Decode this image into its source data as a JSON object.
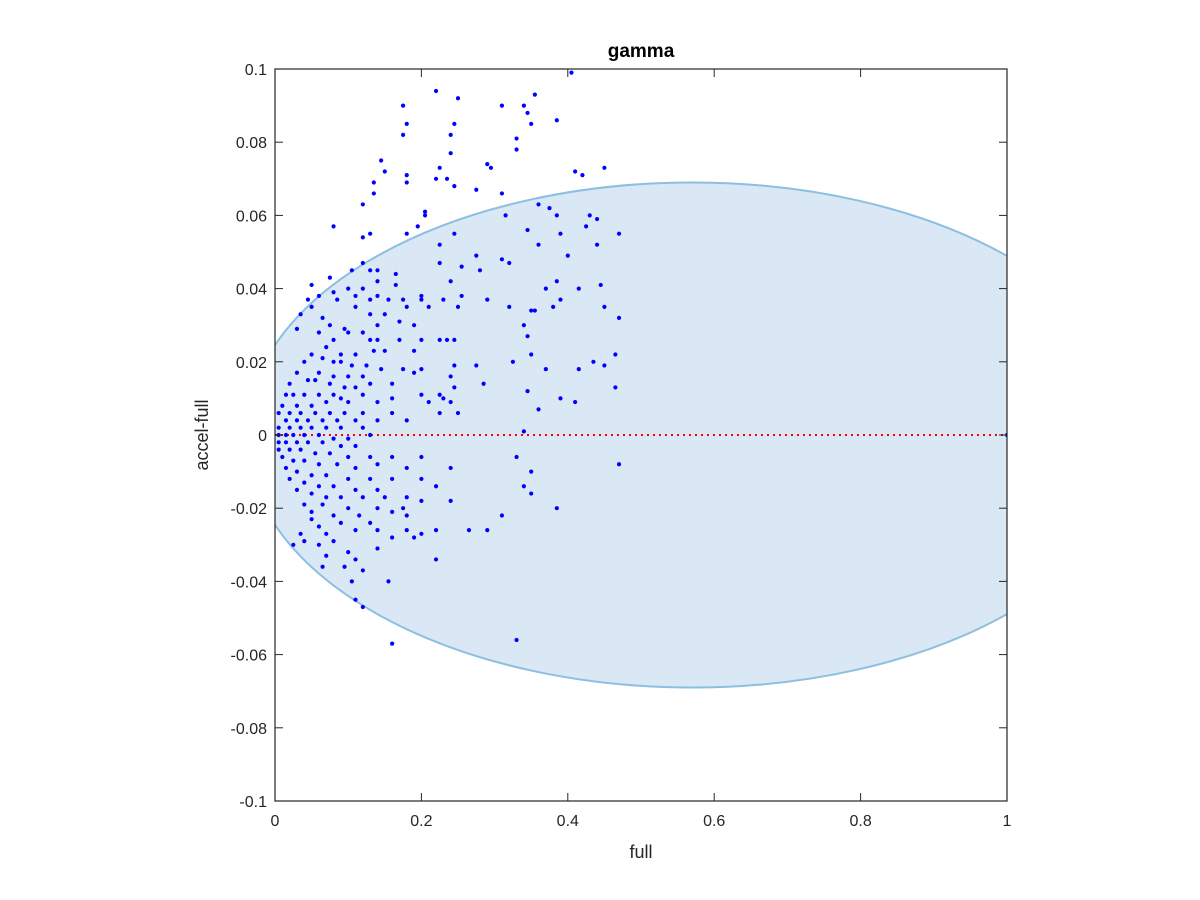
{
  "chart_data": {
    "type": "scatter",
    "title": "gamma",
    "xlabel": "full",
    "ylabel": "accel-full",
    "xlim": [
      0,
      1
    ],
    "ylim": [
      -0.1,
      0.1
    ],
    "xticks": [
      0,
      0.2,
      0.4,
      0.6,
      0.8,
      1
    ],
    "xtick_labels": [
      "0",
      "0.2",
      "0.4",
      "0.6",
      "0.8",
      "1"
    ],
    "yticks": [
      -0.1,
      -0.08,
      -0.06,
      -0.04,
      -0.02,
      0,
      0.02,
      0.04,
      0.06,
      0.08,
      0.1
    ],
    "ytick_labels": [
      "-0.1",
      "-0.08",
      "-0.06",
      "-0.04",
      "-0.02",
      "0",
      "0.02",
      "0.04",
      "0.06",
      "0.08",
      "0.1"
    ],
    "grid": false,
    "colors": {
      "points": "#0000ff",
      "ellipse_fill": "#d9e8f4",
      "ellipse_edge": "#8dbfe0",
      "zero_line": "#ff0000",
      "axes": "#262626"
    },
    "ellipse": {
      "center": [
        0.57,
        0
      ],
      "semi_axis_x": 0.61,
      "semi_axis_y": 0.069
    },
    "reference_line": {
      "y": 0,
      "x_range": [
        0,
        1
      ],
      "style": "dotted"
    },
    "points": [
      [
        0.405,
        0.099
      ],
      [
        0.22,
        0.094
      ],
      [
        0.175,
        0.09
      ],
      [
        0.25,
        0.092
      ],
      [
        0.31,
        0.09
      ],
      [
        0.34,
        0.09
      ],
      [
        0.355,
        0.093
      ],
      [
        0.345,
        0.088
      ],
      [
        0.35,
        0.085
      ],
      [
        0.18,
        0.085
      ],
      [
        0.245,
        0.085
      ],
      [
        0.385,
        0.086
      ],
      [
        0.24,
        0.082
      ],
      [
        0.33,
        0.081
      ],
      [
        0.175,
        0.082
      ],
      [
        0.24,
        0.077
      ],
      [
        0.33,
        0.078
      ],
      [
        0.145,
        0.075
      ],
      [
        0.18,
        0.071
      ],
      [
        0.225,
        0.073
      ],
      [
        0.29,
        0.074
      ],
      [
        0.15,
        0.072
      ],
      [
        0.18,
        0.069
      ],
      [
        0.22,
        0.07
      ],
      [
        0.235,
        0.07
      ],
      [
        0.295,
        0.073
      ],
      [
        0.41,
        0.072
      ],
      [
        0.45,
        0.073
      ],
      [
        0.42,
        0.071
      ],
      [
        0.135,
        0.069
      ],
      [
        0.245,
        0.068
      ],
      [
        0.275,
        0.067
      ],
      [
        0.31,
        0.066
      ],
      [
        0.135,
        0.066
      ],
      [
        0.36,
        0.063
      ],
      [
        0.12,
        0.063
      ],
      [
        0.205,
        0.061
      ],
      [
        0.375,
        0.062
      ],
      [
        0.315,
        0.06
      ],
      [
        0.385,
        0.06
      ],
      [
        0.43,
        0.06
      ],
      [
        0.44,
        0.059
      ],
      [
        0.08,
        0.057
      ],
      [
        0.13,
        0.055
      ],
      [
        0.12,
        0.054
      ],
      [
        0.195,
        0.057
      ],
      [
        0.18,
        0.055
      ],
      [
        0.205,
        0.06
      ],
      [
        0.245,
        0.055
      ],
      [
        0.345,
        0.056
      ],
      [
        0.36,
        0.052
      ],
      [
        0.39,
        0.055
      ],
      [
        0.425,
        0.057
      ],
      [
        0.47,
        0.055
      ],
      [
        0.44,
        0.052
      ],
      [
        0.225,
        0.052
      ],
      [
        0.275,
        0.049
      ],
      [
        0.31,
        0.048
      ],
      [
        0.4,
        0.049
      ],
      [
        0.225,
        0.047
      ],
      [
        0.12,
        0.047
      ],
      [
        0.14,
        0.045
      ],
      [
        0.165,
        0.044
      ],
      [
        0.13,
        0.045
      ],
      [
        0.105,
        0.045
      ],
      [
        0.255,
        0.046
      ],
      [
        0.28,
        0.045
      ],
      [
        0.32,
        0.047
      ],
      [
        0.37,
        0.04
      ],
      [
        0.385,
        0.042
      ],
      [
        0.415,
        0.04
      ],
      [
        0.445,
        0.041
      ],
      [
        0.075,
        0.043
      ],
      [
        0.1,
        0.04
      ],
      [
        0.12,
        0.04
      ],
      [
        0.14,
        0.042
      ],
      [
        0.165,
        0.041
      ],
      [
        0.24,
        0.042
      ],
      [
        0.255,
        0.038
      ],
      [
        0.2,
        0.038
      ],
      [
        0.14,
        0.038
      ],
      [
        0.05,
        0.041
      ],
      [
        0.045,
        0.037
      ],
      [
        0.06,
        0.038
      ],
      [
        0.08,
        0.039
      ],
      [
        0.085,
        0.037
      ],
      [
        0.11,
        0.038
      ],
      [
        0.13,
        0.037
      ],
      [
        0.155,
        0.037
      ],
      [
        0.175,
        0.037
      ],
      [
        0.23,
        0.037
      ],
      [
        0.25,
        0.035
      ],
      [
        0.29,
        0.037
      ],
      [
        0.32,
        0.035
      ],
      [
        0.35,
        0.034
      ],
      [
        0.355,
        0.034
      ],
      [
        0.38,
        0.035
      ],
      [
        0.39,
        0.037
      ],
      [
        0.45,
        0.035
      ],
      [
        0.47,
        0.032
      ],
      [
        0.11,
        0.035
      ],
      [
        0.13,
        0.033
      ],
      [
        0.15,
        0.033
      ],
      [
        0.18,
        0.035
      ],
      [
        0.2,
        0.037
      ],
      [
        0.21,
        0.035
      ],
      [
        0.17,
        0.031
      ],
      [
        0.19,
        0.03
      ],
      [
        0.14,
        0.03
      ],
      [
        0.095,
        0.029
      ],
      [
        0.075,
        0.03
      ],
      [
        0.065,
        0.032
      ],
      [
        0.05,
        0.035
      ],
      [
        0.035,
        0.033
      ],
      [
        0.03,
        0.029
      ],
      [
        0.06,
        0.028
      ],
      [
        0.08,
        0.026
      ],
      [
        0.1,
        0.028
      ],
      [
        0.12,
        0.028
      ],
      [
        0.13,
        0.026
      ],
      [
        0.14,
        0.026
      ],
      [
        0.2,
        0.026
      ],
      [
        0.225,
        0.026
      ],
      [
        0.235,
        0.026
      ],
      [
        0.245,
        0.026
      ],
      [
        0.34,
        0.03
      ],
      [
        0.345,
        0.027
      ],
      [
        0.17,
        0.026
      ],
      [
        0.07,
        0.024
      ],
      [
        0.05,
        0.022
      ],
      [
        0.09,
        0.022
      ],
      [
        0.11,
        0.022
      ],
      [
        0.135,
        0.023
      ],
      [
        0.15,
        0.023
      ],
      [
        0.19,
        0.023
      ],
      [
        0.35,
        0.022
      ],
      [
        0.04,
        0.02
      ],
      [
        0.065,
        0.021
      ],
      [
        0.08,
        0.02
      ],
      [
        0.09,
        0.02
      ],
      [
        0.105,
        0.019
      ],
      [
        0.125,
        0.019
      ],
      [
        0.145,
        0.018
      ],
      [
        0.175,
        0.018
      ],
      [
        0.2,
        0.018
      ],
      [
        0.245,
        0.019
      ],
      [
        0.275,
        0.019
      ],
      [
        0.325,
        0.02
      ],
      [
        0.37,
        0.018
      ],
      [
        0.415,
        0.018
      ],
      [
        0.45,
        0.019
      ],
      [
        0.465,
        0.022
      ],
      [
        0.435,
        0.02
      ],
      [
        0.06,
        0.017
      ],
      [
        0.08,
        0.016
      ],
      [
        0.1,
        0.016
      ],
      [
        0.12,
        0.016
      ],
      [
        0.03,
        0.017
      ],
      [
        0.02,
        0.014
      ],
      [
        0.045,
        0.015
      ],
      [
        0.055,
        0.015
      ],
      [
        0.075,
        0.014
      ],
      [
        0.095,
        0.013
      ],
      [
        0.11,
        0.013
      ],
      [
        0.13,
        0.014
      ],
      [
        0.16,
        0.014
      ],
      [
        0.19,
        0.017
      ],
      [
        0.24,
        0.016
      ],
      [
        0.245,
        0.013
      ],
      [
        0.285,
        0.014
      ],
      [
        0.465,
        0.013
      ],
      [
        0.015,
        0.011
      ],
      [
        0.025,
        0.011
      ],
      [
        0.04,
        0.011
      ],
      [
        0.06,
        0.011
      ],
      [
        0.08,
        0.011
      ],
      [
        0.09,
        0.01
      ],
      [
        0.12,
        0.011
      ],
      [
        0.2,
        0.011
      ],
      [
        0.225,
        0.011
      ],
      [
        0.23,
        0.01
      ],
      [
        0.345,
        0.012
      ],
      [
        0.39,
        0.01
      ],
      [
        0.41,
        0.009
      ],
      [
        0.21,
        0.009
      ],
      [
        0.24,
        0.009
      ],
      [
        0.16,
        0.01
      ],
      [
        0.14,
        0.009
      ],
      [
        0.1,
        0.009
      ],
      [
        0.07,
        0.009
      ],
      [
        0.05,
        0.008
      ],
      [
        0.03,
        0.008
      ],
      [
        0.01,
        0.008
      ],
      [
        0.005,
        0.006
      ],
      [
        0.02,
        0.006
      ],
      [
        0.035,
        0.006
      ],
      [
        0.055,
        0.006
      ],
      [
        0.075,
        0.006
      ],
      [
        0.095,
        0.006
      ],
      [
        0.12,
        0.006
      ],
      [
        0.015,
        0.004
      ],
      [
        0.03,
        0.004
      ],
      [
        0.045,
        0.004
      ],
      [
        0.065,
        0.004
      ],
      [
        0.085,
        0.004
      ],
      [
        0.11,
        0.004
      ],
      [
        0.14,
        0.004
      ],
      [
        0.16,
        0.006
      ],
      [
        0.18,
        0.004
      ],
      [
        0.225,
        0.006
      ],
      [
        0.25,
        0.006
      ],
      [
        0.36,
        0.007
      ],
      [
        0.005,
        0.002
      ],
      [
        0.02,
        0.002
      ],
      [
        0.035,
        0.002
      ],
      [
        0.05,
        0.002
      ],
      [
        0.07,
        0.002
      ],
      [
        0.09,
        0.002
      ],
      [
        0.12,
        0.002
      ],
      [
        0.34,
        0.001
      ],
      [
        0.005,
        0.0
      ],
      [
        0.015,
        0.0
      ],
      [
        0.025,
        0.0
      ],
      [
        0.04,
        0.0
      ],
      [
        0.06,
        0.0
      ],
      [
        0.08,
        -0.001
      ],
      [
        0.1,
        -0.001
      ],
      [
        0.13,
        0.0
      ],
      [
        1.0,
        0.0
      ],
      [
        0.005,
        -0.002
      ],
      [
        0.015,
        -0.002
      ],
      [
        0.03,
        -0.002
      ],
      [
        0.045,
        -0.002
      ],
      [
        0.065,
        -0.002
      ],
      [
        0.09,
        -0.003
      ],
      [
        0.11,
        -0.003
      ],
      [
        0.005,
        -0.004
      ],
      [
        0.02,
        -0.004
      ],
      [
        0.035,
        -0.004
      ],
      [
        0.055,
        -0.005
      ],
      [
        0.075,
        -0.005
      ],
      [
        0.1,
        -0.006
      ],
      [
        0.13,
        -0.006
      ],
      [
        0.16,
        -0.006
      ],
      [
        0.2,
        -0.006
      ],
      [
        0.33,
        -0.006
      ],
      [
        0.47,
        -0.008
      ],
      [
        0.01,
        -0.006
      ],
      [
        0.025,
        -0.007
      ],
      [
        0.04,
        -0.007
      ],
      [
        0.06,
        -0.008
      ],
      [
        0.085,
        -0.008
      ],
      [
        0.11,
        -0.009
      ],
      [
        0.14,
        -0.008
      ],
      [
        0.18,
        -0.009
      ],
      [
        0.24,
        -0.009
      ],
      [
        0.35,
        -0.01
      ],
      [
        0.015,
        -0.009
      ],
      [
        0.03,
        -0.01
      ],
      [
        0.05,
        -0.011
      ],
      [
        0.07,
        -0.011
      ],
      [
        0.1,
        -0.012
      ],
      [
        0.13,
        -0.012
      ],
      [
        0.16,
        -0.012
      ],
      [
        0.2,
        -0.012
      ],
      [
        0.22,
        -0.014
      ],
      [
        0.02,
        -0.012
      ],
      [
        0.04,
        -0.013
      ],
      [
        0.06,
        -0.014
      ],
      [
        0.08,
        -0.014
      ],
      [
        0.11,
        -0.015
      ],
      [
        0.14,
        -0.015
      ],
      [
        0.34,
        -0.014
      ],
      [
        0.03,
        -0.015
      ],
      [
        0.05,
        -0.016
      ],
      [
        0.07,
        -0.017
      ],
      [
        0.09,
        -0.017
      ],
      [
        0.12,
        -0.017
      ],
      [
        0.15,
        -0.017
      ],
      [
        0.18,
        -0.017
      ],
      [
        0.2,
        -0.018
      ],
      [
        0.24,
        -0.018
      ],
      [
        0.35,
        -0.016
      ],
      [
        0.04,
        -0.019
      ],
      [
        0.065,
        -0.019
      ],
      [
        0.1,
        -0.02
      ],
      [
        0.14,
        -0.02
      ],
      [
        0.175,
        -0.02
      ],
      [
        0.385,
        -0.02
      ],
      [
        0.05,
        -0.021
      ],
      [
        0.08,
        -0.022
      ],
      [
        0.115,
        -0.022
      ],
      [
        0.16,
        -0.021
      ],
      [
        0.18,
        -0.022
      ],
      [
        0.05,
        -0.023
      ],
      [
        0.09,
        -0.024
      ],
      [
        0.13,
        -0.024
      ],
      [
        0.31,
        -0.022
      ],
      [
        0.06,
        -0.025
      ],
      [
        0.11,
        -0.026
      ],
      [
        0.14,
        -0.026
      ],
      [
        0.18,
        -0.026
      ],
      [
        0.22,
        -0.026
      ],
      [
        0.265,
        -0.026
      ],
      [
        0.29,
        -0.026
      ],
      [
        0.035,
        -0.027
      ],
      [
        0.07,
        -0.027
      ],
      [
        0.2,
        -0.027
      ],
      [
        0.04,
        -0.029
      ],
      [
        0.08,
        -0.029
      ],
      [
        0.16,
        -0.028
      ],
      [
        0.19,
        -0.028
      ],
      [
        0.025,
        -0.03
      ],
      [
        0.06,
        -0.03
      ],
      [
        0.1,
        -0.032
      ],
      [
        0.14,
        -0.031
      ],
      [
        0.07,
        -0.033
      ],
      [
        0.11,
        -0.034
      ],
      [
        0.22,
        -0.034
      ],
      [
        0.065,
        -0.036
      ],
      [
        0.095,
        -0.036
      ],
      [
        0.12,
        -0.037
      ],
      [
        0.155,
        -0.04
      ],
      [
        0.105,
        -0.04
      ],
      [
        0.11,
        -0.045
      ],
      [
        0.12,
        -0.047
      ],
      [
        0.33,
        -0.056
      ],
      [
        0.16,
        -0.057
      ]
    ]
  }
}
